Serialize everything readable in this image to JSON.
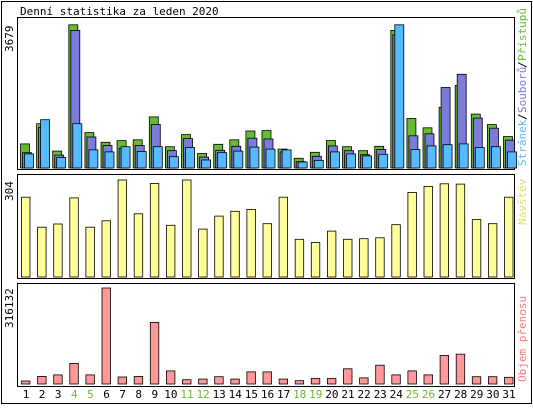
{
  "page": {
    "title": "Denní statistika za leden 2020"
  },
  "chart_data": [
    {
      "type": "bar",
      "panel": "top",
      "categories": [
        "1",
        "2",
        "3",
        "4",
        "5",
        "6",
        "7",
        "8",
        "9",
        "10",
        "11",
        "12",
        "13",
        "14",
        "15",
        "16",
        "17",
        "18",
        "19",
        "20",
        "21",
        "22",
        "23",
        "24",
        "25",
        "26",
        "27",
        "28",
        "29",
        "30",
        "31"
      ],
      "y_max_label": "3679",
      "legend": [
        "Přístupů",
        "Souborů",
        "Stránek"
      ],
      "colors": {
        "pristupu": "#66bb33",
        "souboru": "#7b7bdc",
        "stranek": "#55bbff"
      },
      "series": [
        {
          "name": "Přístupů",
          "values": [
            600,
            1100,
            420,
            3560,
            880,
            640,
            680,
            700,
            1270,
            530,
            830,
            360,
            590,
            700,
            920,
            930,
            470,
            240,
            390,
            680,
            530,
            430,
            540,
            3420,
            1230,
            1000,
            1510,
            2050,
            1340,
            1080,
            780
          ]
        },
        {
          "name": "Souborů",
          "values": [
            380,
            1010,
            320,
            3420,
            770,
            560,
            490,
            560,
            1080,
            430,
            730,
            270,
            440,
            540,
            740,
            720,
            400,
            160,
            290,
            550,
            430,
            330,
            460,
            3310,
            800,
            850,
            2000,
            2330,
            1240,
            990,
            690
          ]
        },
        {
          "name": "Stránek",
          "values": [
            350,
            1200,
            260,
            1100,
            450,
            400,
            530,
            410,
            530,
            280,
            510,
            200,
            380,
            420,
            520,
            470,
            450,
            150,
            190,
            400,
            350,
            300,
            340,
            3560,
            460,
            550,
            580,
            600,
            510,
            530,
            400
          ]
        }
      ]
    },
    {
      "type": "bar",
      "panel": "middle",
      "categories": [
        "1",
        "2",
        "3",
        "4",
        "5",
        "6",
        "7",
        "8",
        "9",
        "10",
        "11",
        "12",
        "13",
        "14",
        "15",
        "16",
        "17",
        "18",
        "19",
        "20",
        "21",
        "22",
        "23",
        "24",
        "25",
        "26",
        "27",
        "28",
        "29",
        "30",
        "31"
      ],
      "y_max_label": "304",
      "legend": [
        "Návštěv"
      ],
      "colors": {
        "navstev": "#ffff99"
      },
      "series": [
        {
          "name": "Návštěv",
          "values": [
            250,
            156,
            166,
            248,
            156,
            176,
            304,
            198,
            293,
            162,
            304,
            150,
            191,
            206,
            212,
            167,
            250,
            118,
            108,
            144,
            118,
            120,
            123,
            164,
            265,
            284,
            292,
            291,
            180,
            167,
            250
          ]
        }
      ]
    },
    {
      "type": "bar",
      "panel": "bottom",
      "categories": [
        "1",
        "2",
        "3",
        "4",
        "5",
        "6",
        "7",
        "8",
        "9",
        "10",
        "11",
        "12",
        "13",
        "14",
        "15",
        "16",
        "17",
        "18",
        "19",
        "20",
        "21",
        "22",
        "23",
        "24",
        "25",
        "26",
        "27",
        "28",
        "29",
        "30",
        "31"
      ],
      "y_max_label": "316132",
      "legend": [
        "Objem přenosu"
      ],
      "colors": {
        "objem": "#ff9999"
      },
      "series": [
        {
          "name": "Objem přenosu",
          "values": [
            10000,
            25000,
            30000,
            68000,
            30000,
            316132,
            23000,
            25000,
            203000,
            43000,
            14000,
            16000,
            24000,
            16000,
            40000,
            40000,
            16000,
            11000,
            18000,
            18000,
            50000,
            20000,
            62000,
            30000,
            43000,
            30000,
            94000,
            98000,
            24000,
            24000,
            22000
          ]
        }
      ]
    }
  ],
  "x_axis": {
    "labels": [
      "1",
      "2",
      "3",
      "4",
      "5",
      "6",
      "7",
      "8",
      "9",
      "10",
      "11",
      "12",
      "13",
      "14",
      "15",
      "16",
      "17",
      "18",
      "19",
      "20",
      "21",
      "22",
      "23",
      "24",
      "25",
      "26",
      "27",
      "28",
      "29",
      "30",
      "31"
    ],
    "weekend_days": [
      "4",
      "5",
      "11",
      "12",
      "18",
      "19",
      "25",
      "26"
    ],
    "weekend_color": "#66bb33",
    "weekday_color": "#000000"
  },
  "legend_colors": {
    "Přístupů": "#66bb33",
    "Souborů": "#7b7bdc",
    "Stránek": "#55bbff",
    "Návštěv": "#e8e877",
    "Objem přenosu": "#ff7777"
  }
}
